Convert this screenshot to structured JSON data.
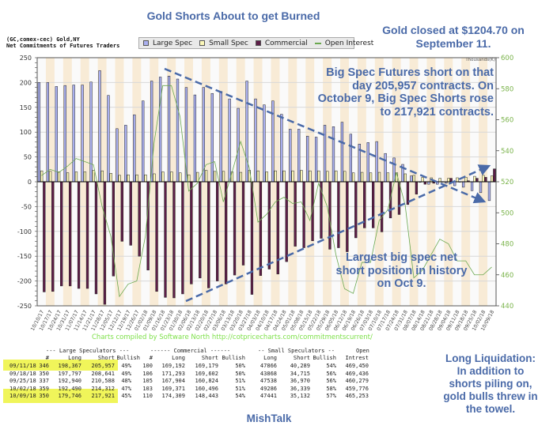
{
  "annotations": {
    "title": "Gold Shorts About to get Burned",
    "gold_closed": "Gold closed at $1204.70 on September 11.",
    "big_spec": "Big Spec Futures short on that day 205,957 contracts. On October 9, Big Spec Shorts rose to 217,921 contracts.",
    "largest": "Largest big spec net short position in history on Oct 9.",
    "long_liquidation": "Long Liquidation: In addition to shorts piling on, gold bulls threw in the towel.",
    "footer": "MishTalk"
  },
  "credit": "Charts compiled by Software North  http://cotpricecharts.com/commitmentscurrent/",
  "chart_data": {
    "type": "bar",
    "title": "(GC,comex-cec) Gold,NY",
    "subtitle": "Net Commitments of Futures Traders",
    "right_axis_label": "Thousands(K)",
    "ylim": [
      -250,
      250
    ],
    "yticks": [
      250,
      200,
      150,
      100,
      50,
      0,
      -50,
      -100,
      -150,
      -200,
      -250
    ],
    "y2lim": [
      440,
      600
    ],
    "y2ticks": [
      600,
      580,
      560,
      540,
      520,
      500,
      480,
      460,
      440
    ],
    "legend_position": "top",
    "colors": {
      "Large Spec": "#aab0f0",
      "Small Spec": "#fbf7b8",
      "Commercial": "#5e1e48",
      "Open Interest": "#6aa84f",
      "band": "#f8ebd6"
    },
    "categories": [
      "10/10/17",
      "10/17/17",
      "10/24/17",
      "10/31/17",
      "11/07/17",
      "11/14/17",
      "11/21/17",
      "11/28/17",
      "12/05/17",
      "12/12/17",
      "12/19/17",
      "12/26/17",
      "01/02/18",
      "01/09/18",
      "01/16/18",
      "01/23/18",
      "01/30/18",
      "02/06/18",
      "02/13/18",
      "02/20/18",
      "02/27/18",
      "03/06/18",
      "03/13/18",
      "03/20/18",
      "03/27/18",
      "04/03/18",
      "04/10/18",
      "04/17/18",
      "04/24/18",
      "05/01/18",
      "05/08/18",
      "05/15/18",
      "05/22/18",
      "05/29/18",
      "06/05/18",
      "06/12/18",
      "06/19/18",
      "06/26/18",
      "07/03/18",
      "07/10/18",
      "07/17/18",
      "07/24/18",
      "07/31/18",
      "08/07/18",
      "08/14/18",
      "08/21/18",
      "08/28/18",
      "09/04/18",
      "09/11/18",
      "09/18/18",
      "09/25/18",
      "10/02/18",
      "10/09/18"
    ],
    "series": [
      {
        "name": "Large Spec",
        "axis": "left",
        "values": [
          200,
          200,
          192,
          194,
          195,
          195,
          201,
          224,
          174,
          107,
          114,
          135,
          163,
          203,
          211,
          213,
          207,
          190,
          175,
          190,
          178,
          182,
          167,
          148,
          203,
          167,
          155,
          163,
          136,
          106,
          106,
          92,
          90,
          114,
          111,
          120,
          96,
          76,
          79,
          81,
          57,
          48,
          35,
          12,
          -1,
          -5,
          -5,
          -3,
          -8,
          -11,
          -18,
          -22,
          -38
        ]
      },
      {
        "name": "Small Spec",
        "axis": "left",
        "values": [
          22,
          21,
          20,
          18,
          20,
          20,
          23,
          22,
          17,
          13,
          14,
          14,
          14,
          16,
          20,
          20,
          18,
          14,
          19,
          23,
          21,
          21,
          20,
          19,
          23,
          22,
          20,
          22,
          22,
          22,
          23,
          22,
          22,
          21,
          22,
          21,
          18,
          19,
          18,
          19,
          18,
          18,
          16,
          13,
          9,
          8,
          7,
          7,
          8,
          9,
          11,
          13,
          12
        ]
      },
      {
        "name": "Commercial",
        "axis": "left",
        "values": [
          -222,
          -221,
          -210,
          -210,
          -215,
          -215,
          -226,
          -247,
          -190,
          -120,
          -128,
          -150,
          -178,
          -221,
          -233,
          -234,
          -226,
          -206,
          -194,
          -214,
          -200,
          -206,
          -188,
          -168,
          -227,
          -189,
          -176,
          -186,
          -161,
          -130,
          -133,
          -119,
          -114,
          -136,
          -133,
          -141,
          -113,
          -93,
          -93,
          -101,
          -73,
          -66,
          -46,
          -25,
          -5,
          -3,
          0,
          7,
          0,
          2,
          7,
          9,
          26
        ]
      },
      {
        "name": "Open Interest",
        "axis": "right",
        "values": [
          524,
          528,
          526,
          530,
          535,
          533,
          531,
          504,
          485,
          446,
          454,
          456,
          485,
          545,
          582,
          582,
          562,
          514,
          519,
          531,
          533,
          507,
          526,
          546,
          529,
          494,
          499,
          507,
          510,
          506,
          507,
          495,
          519,
          504,
          473,
          451,
          448,
          468,
          468,
          495,
          502,
          526,
          505,
          458,
          463,
          473,
          483,
          480,
          469,
          469,
          460,
          460,
          465
        ]
      }
    ]
  },
  "table": {
    "group_headers": [
      "--- Large Speculators ---",
      "------ Commercial ------",
      "-- Small Speculators --",
      "Open"
    ],
    "columns": [
      "#",
      "Long",
      "Short",
      "Bullish",
      "#",
      "Long",
      "Short",
      "Bullish",
      "Long",
      "Short",
      "Bullish",
      "Intrest"
    ],
    "rows": [
      {
        "date": "09/11/18",
        "highlight": true,
        "cells": [
          "346",
          "198,367",
          "205,957",
          "49%",
          "100",
          "169,192",
          "169,179",
          "50%",
          "47866",
          "40,289",
          "54%",
          "469,450"
        ]
      },
      {
        "date": "09/18/18",
        "highlight": false,
        "cells": [
          "350",
          "197,797",
          "208,641",
          "49%",
          "106",
          "171,293",
          "169,602",
          "50%",
          "43868",
          "34,715",
          "56%",
          "469,436"
        ]
      },
      {
        "date": "09/25/18",
        "highlight": false,
        "cells": [
          "337",
          "192,940",
          "210,588",
          "48%",
          "105",
          "167,904",
          "160,824",
          "51%",
          "47538",
          "36,970",
          "56%",
          "460,279"
        ]
      },
      {
        "date": "10/02/18",
        "highlight": false,
        "cells": [
          "359",
          "192,490",
          "214,312",
          "47%",
          "103",
          "169,371",
          "160,496",
          "51%",
          "49286",
          "36,339",
          "58%",
          "459,776"
        ]
      },
      {
        "date": "10/09/18",
        "highlight": true,
        "cells": [
          "350",
          "179,746",
          "217,921",
          "45%",
          "110",
          "174,309",
          "148,443",
          "54%",
          "47441",
          "35,132",
          "57%",
          "465,253"
        ]
      }
    ],
    "highlight_color": "#f0f55a"
  }
}
